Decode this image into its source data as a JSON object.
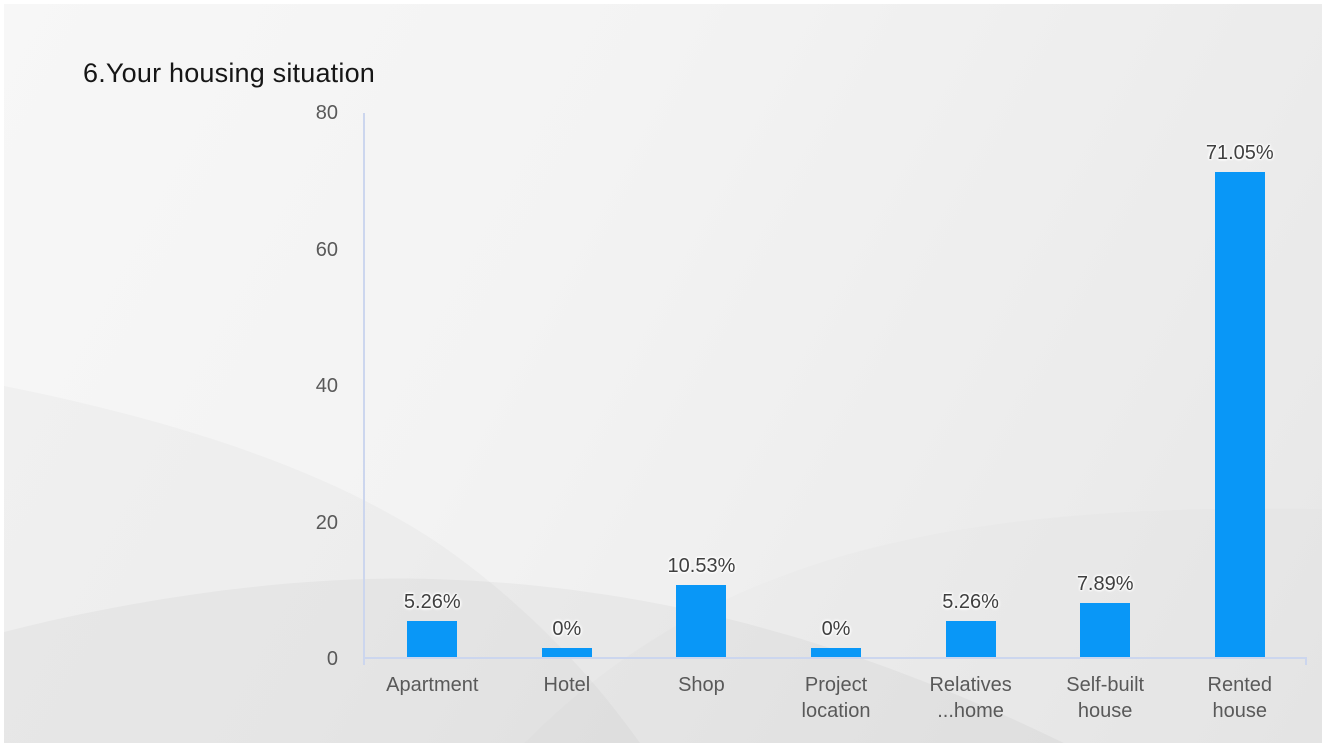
{
  "slide": {
    "title": "6.Your housing situation"
  },
  "chart_data": {
    "type": "bar",
    "title": "6.Your housing situation",
    "categories": [
      "Apartment",
      "Hotel",
      "Shop",
      "Project\nlocation",
      "Relatives\n...home",
      "Self-built\nhouse",
      "Rented\nhouse"
    ],
    "values": [
      5.26,
      0,
      10.53,
      0,
      5.26,
      7.89,
      71.05
    ],
    "data_labels": [
      "5.26%",
      "0%",
      "10.53%",
      "0%",
      "5.26%",
      "7.89%",
      "71.05%"
    ],
    "unit": "%",
    "xlabel": "",
    "ylabel": "",
    "ylim": [
      0,
      80
    ],
    "yticks": [
      0,
      20,
      40,
      60,
      80
    ],
    "grid": false,
    "legend": "none",
    "bar_color": "#0997f7",
    "axis_line_color": "#ccd6ee",
    "value_label_color": "#3f3f3f",
    "tick_label_color": "#595959",
    "background_color": "#f0f0f0"
  }
}
